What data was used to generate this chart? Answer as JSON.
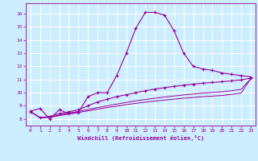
{
  "xlabel": "Windchill (Refroidissement éolien,°C)",
  "background_color": "#cceeff",
  "grid_color": "#aaddee",
  "line_color": "#990099",
  "xlim": [
    -0.5,
    23.5
  ],
  "ylim": [
    7.5,
    16.8
  ],
  "xticks": [
    0,
    1,
    2,
    3,
    4,
    5,
    6,
    7,
    8,
    9,
    10,
    11,
    12,
    13,
    14,
    15,
    16,
    17,
    18,
    19,
    20,
    21,
    22,
    23
  ],
  "yticks": [
    8,
    9,
    10,
    11,
    12,
    13,
    14,
    15,
    16
  ],
  "curve1_x": [
    0,
    1,
    2,
    3,
    4,
    5,
    6,
    7,
    8,
    9,
    10,
    11,
    12,
    13,
    14,
    15,
    16,
    17,
    18,
    19,
    20,
    21,
    22,
    23
  ],
  "curve1_y": [
    8.6,
    8.8,
    8.0,
    8.7,
    8.4,
    8.5,
    9.7,
    10.0,
    10.0,
    11.3,
    13.0,
    14.9,
    16.1,
    16.1,
    15.9,
    14.7,
    13.0,
    12.0,
    11.8,
    11.7,
    11.5,
    11.4,
    11.3,
    11.2
  ],
  "curve2_x": [
    0,
    1,
    2,
    3,
    4,
    5,
    6,
    7,
    8,
    9,
    10,
    11,
    12,
    13,
    14,
    15,
    16,
    17,
    18,
    19,
    20,
    21,
    22,
    23
  ],
  "curve2_y": [
    8.55,
    8.1,
    8.2,
    8.4,
    8.55,
    8.7,
    9.0,
    9.3,
    9.5,
    9.7,
    9.85,
    10.0,
    10.15,
    10.28,
    10.38,
    10.48,
    10.57,
    10.65,
    10.72,
    10.78,
    10.84,
    10.9,
    10.97,
    11.1
  ],
  "curve3_x": [
    0,
    1,
    2,
    3,
    4,
    5,
    6,
    7,
    8,
    9,
    10,
    11,
    12,
    13,
    14,
    15,
    16,
    17,
    18,
    19,
    20,
    21,
    22,
    23
  ],
  "curve3_y": [
    8.55,
    8.1,
    8.15,
    8.3,
    8.45,
    8.58,
    8.72,
    8.87,
    9.0,
    9.13,
    9.26,
    9.38,
    9.48,
    9.58,
    9.67,
    9.75,
    9.83,
    9.9,
    9.97,
    10.02,
    10.07,
    10.15,
    10.25,
    11.05
  ],
  "curve4_x": [
    0,
    1,
    2,
    3,
    4,
    5,
    6,
    7,
    8,
    9,
    10,
    11,
    12,
    13,
    14,
    15,
    16,
    17,
    18,
    19,
    20,
    21,
    22,
    23
  ],
  "curve4_y": [
    8.55,
    8.1,
    8.12,
    8.25,
    8.38,
    8.5,
    8.62,
    8.75,
    8.87,
    8.98,
    9.09,
    9.19,
    9.28,
    9.36,
    9.44,
    9.51,
    9.58,
    9.64,
    9.7,
    9.74,
    9.79,
    9.87,
    9.97,
    11.05
  ]
}
